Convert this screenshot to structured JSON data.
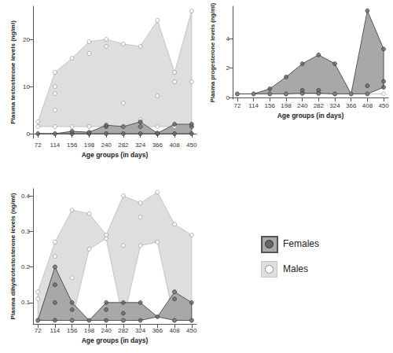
{
  "chart_data": [
    {
      "type": "scatter",
      "xlabel": "Age groups (in days)",
      "ylabel": "Plasma testosterone levels (ng/ml)",
      "xlim": [
        60,
        462
      ],
      "xticks": [
        72,
        114,
        156,
        198,
        240,
        282,
        324,
        366,
        408,
        450
      ],
      "ylim": [
        -1,
        27
      ],
      "yticks": [
        0,
        10,
        20
      ],
      "grid": false,
      "series": [
        {
          "name": "Males",
          "color": "#dedede",
          "x": [
            72,
            72,
            114,
            114,
            114,
            114,
            114,
            156,
            156,
            198,
            198,
            198,
            240,
            240,
            240,
            282,
            282,
            282,
            324,
            324,
            324,
            366,
            366,
            366,
            408,
            408,
            408,
            450,
            450,
            450
          ],
          "values": [
            1.5,
            2.5,
            1.5,
            5,
            8.5,
            10,
            13,
            1.5,
            16,
            1.5,
            17,
            19.5,
            1.5,
            18.5,
            20,
            1.5,
            6.5,
            19,
            1.5,
            3,
            18.5,
            1.5,
            8,
            24,
            1.5,
            11,
            13,
            1.5,
            11,
            26
          ]
        },
        {
          "name": "Females",
          "color": "#a8a8a8",
          "x": [
            72,
            114,
            156,
            156,
            198,
            198,
            240,
            240,
            240,
            282,
            282,
            324,
            324,
            324,
            366,
            366,
            408,
            408,
            450,
            450,
            450
          ],
          "values": [
            0,
            0,
            0,
            0.5,
            0,
            0.3,
            0,
            1.5,
            1.8,
            0,
            1.5,
            0,
            1.5,
            2.5,
            0,
            0.1,
            0,
            2,
            0,
            1.5,
            2
          ]
        }
      ]
    },
    {
      "type": "scatter",
      "xlabel": "Age groups (in days)",
      "ylabel": "Plasma progesterone levels (ng/ml)",
      "xlim": [
        60,
        462
      ],
      "xticks": [
        72,
        114,
        156,
        198,
        240,
        282,
        324,
        366,
        408,
        450
      ],
      "ylim": [
        -0.1,
        6.2
      ],
      "yticks": [
        0,
        2,
        4
      ],
      "grid": false,
      "series": [
        {
          "name": "Males",
          "color": "#dedede",
          "x": [
            72,
            114,
            156,
            198,
            240,
            282,
            324,
            366,
            408,
            450
          ],
          "values": [
            0.25,
            0.25,
            0.25,
            0.25,
            0.25,
            0.25,
            0.25,
            0.25,
            0.25,
            0.25
          ]
        },
        {
          "name": "Females",
          "color": "#a8a8a8",
          "x": [
            72,
            114,
            156,
            156,
            198,
            198,
            240,
            240,
            240,
            282,
            282,
            282,
            324,
            324,
            366,
            408,
            408,
            408,
            450,
            450,
            450
          ],
          "values": [
            0.25,
            0.25,
            0.25,
            0.6,
            0.25,
            1.4,
            0.3,
            0.5,
            2.3,
            0.3,
            0.5,
            2.9,
            0.25,
            2.3,
            0.25,
            0.25,
            0.8,
            5.9,
            0.7,
            1.1,
            3.3
          ]
        }
      ]
    },
    {
      "type": "scatter",
      "xlabel": "Age groups (in days)",
      "ylabel": "Plasma dihydrotestosterone levels (ng/ml)",
      "xlim": [
        60,
        462
      ],
      "xticks": [
        72,
        114,
        156,
        198,
        240,
        282,
        324,
        366,
        408,
        450
      ],
      "ylim": [
        0.04,
        0.42
      ],
      "yticks": [
        0.1,
        0.2,
        0.3,
        0.4
      ],
      "grid": false,
      "legend": "right",
      "series": [
        {
          "name": "Males",
          "color": "#dedede",
          "x": [
            72,
            72,
            72,
            114,
            114,
            114,
            156,
            156,
            156,
            198,
            198,
            240,
            240,
            282,
            282,
            282,
            324,
            324,
            324,
            366,
            366,
            408,
            408,
            408,
            450,
            450
          ],
          "values": [
            0.05,
            0.11,
            0.13,
            0.2,
            0.23,
            0.27,
            0.05,
            0.17,
            0.36,
            0.25,
            0.35,
            0.28,
            0.29,
            0.05,
            0.26,
            0.4,
            0.26,
            0.34,
            0.38,
            0.27,
            0.41,
            0.05,
            0.13,
            0.32,
            0.05,
            0.29
          ]
        },
        {
          "name": "Females",
          "color": "#a8a8a8",
          "x": [
            72,
            114,
            114,
            114,
            114,
            156,
            156,
            156,
            198,
            240,
            240,
            240,
            282,
            282,
            282,
            324,
            324,
            366,
            408,
            408,
            408,
            450,
            450
          ],
          "values": [
            0.05,
            0.05,
            0.1,
            0.15,
            0.2,
            0.05,
            0.08,
            0.1,
            0.05,
            0.05,
            0.08,
            0.1,
            0.05,
            0.07,
            0.1,
            0.05,
            0.1,
            0.06,
            0.05,
            0.11,
            0.13,
            0.05,
            0.1
          ]
        }
      ]
    }
  ]
}
